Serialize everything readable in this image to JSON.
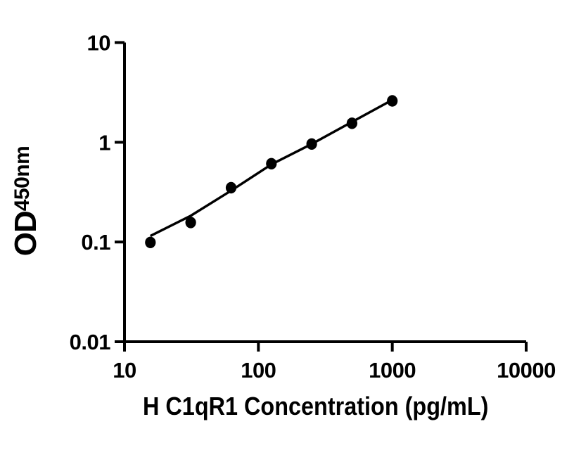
{
  "figure": {
    "background_color": "#ffffff",
    "ink_color": "#000000"
  },
  "chart_data": {
    "type": "scatter",
    "title": "",
    "xlabel": "H C1qR1 Concentration (pg/mL)",
    "ylabel_main": "OD",
    "ylabel_subscript": "450nm",
    "x_scale": "log10",
    "y_scale": "log10",
    "xlim": [
      10,
      10000
    ],
    "ylim": [
      0.01,
      10
    ],
    "x_tick_values": [
      10,
      100,
      1000,
      10000
    ],
    "x_tick_labels": [
      "10",
      "100",
      "1000",
      "10000"
    ],
    "y_tick_values": [
      10,
      1,
      0.1,
      0.01
    ],
    "y_tick_labels": [
      "10",
      "1",
      "0.1",
      "0.01"
    ],
    "grid": false,
    "legend": false,
    "series": [
      {
        "name": "H C1qR1 standard curve",
        "marker": "filled-circle",
        "marker_color": "#000000",
        "x": [
          15.6,
          31.2,
          62.5,
          125,
          250,
          500,
          1000
        ],
        "y": [
          0.099,
          0.157,
          0.35,
          0.61,
          0.96,
          1.55,
          2.6
        ]
      }
    ],
    "trend_line": {
      "name": "fitted standard curve line",
      "color": "#000000",
      "x": [
        15.6,
        31.2,
        62.5,
        125,
        250,
        500,
        1000
      ],
      "y": [
        0.115,
        0.183,
        0.327,
        0.6,
        0.96,
        1.6,
        2.66
      ]
    }
  }
}
